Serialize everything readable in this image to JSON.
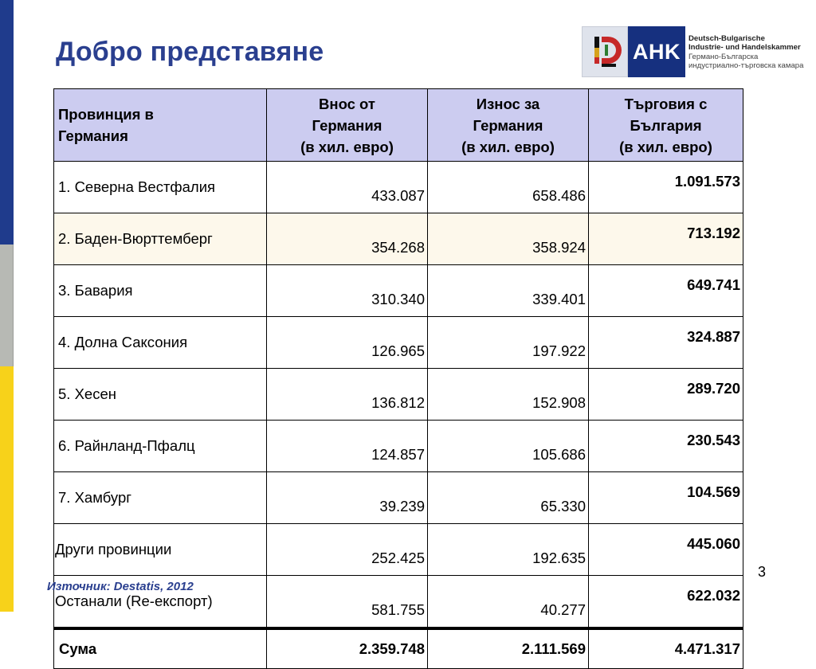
{
  "slide": {
    "title": "Добро представяне",
    "page_number": "3",
    "source": "Източник: Destatis, 2012"
  },
  "logo": {
    "brand": "AHK",
    "line1": "Deutsch-Bulgarische",
    "line2": "Industrie- und Handelskammer",
    "line3": "Германо-Българска",
    "line4": "индустриално-търговска камара"
  },
  "table": {
    "headers": [
      [
        "Провинция в",
        "Германия"
      ],
      [
        "Внос от",
        "Германия",
        "(в хил. евро)"
      ],
      [
        "Износ за",
        "Германия",
        "(в хил. евро)"
      ],
      [
        "Търговия с",
        "България",
        "(в хил. евро)"
      ]
    ],
    "rows": [
      {
        "name": "1. Северна Вестфалия",
        "import": "433.087",
        "export": "658.486",
        "trade": "1.091.573"
      },
      {
        "name": "2. Баден-Вюрттемберг",
        "import": "354.268",
        "export": "358.924",
        "trade": "713.192"
      },
      {
        "name": "3. Бавария",
        "import": "310.340",
        "export": "339.401",
        "trade": "649.741"
      },
      {
        "name": "4. Долна Саксония",
        "import": "126.965",
        "export": "197.922",
        "trade": "324.887"
      },
      {
        "name": "5. Хесен",
        "import": "136.812",
        "export": "152.908",
        "trade": "289.720"
      },
      {
        "name": "6. Райнланд-Пфалц",
        "import": "124.857",
        "export": "105.686",
        "trade": "230.543"
      },
      {
        "name": "7. Хамбург",
        "import": "39.239",
        "export": "65.330",
        "trade": "104.569"
      },
      {
        "name": "Други провинции",
        "import": "252.425",
        "export": "192.635",
        "trade": "445.060"
      },
      {
        "name": "Останали (Re-експорт)",
        "import": "581.755",
        "export": "40.277",
        "trade": "622.032"
      }
    ],
    "total": {
      "name": "Сума",
      "import": "2.359.748",
      "export": "2.111.569",
      "trade": "4.471.317"
    }
  },
  "colors": {
    "title": "#2a3f8f",
    "header_bg": "#ccccf0",
    "sidebar_blue": "#1f3b8c",
    "sidebar_gray": "#b7b9b4",
    "sidebar_yellow": "#f7d21a",
    "logo_blue": "#16307f"
  }
}
